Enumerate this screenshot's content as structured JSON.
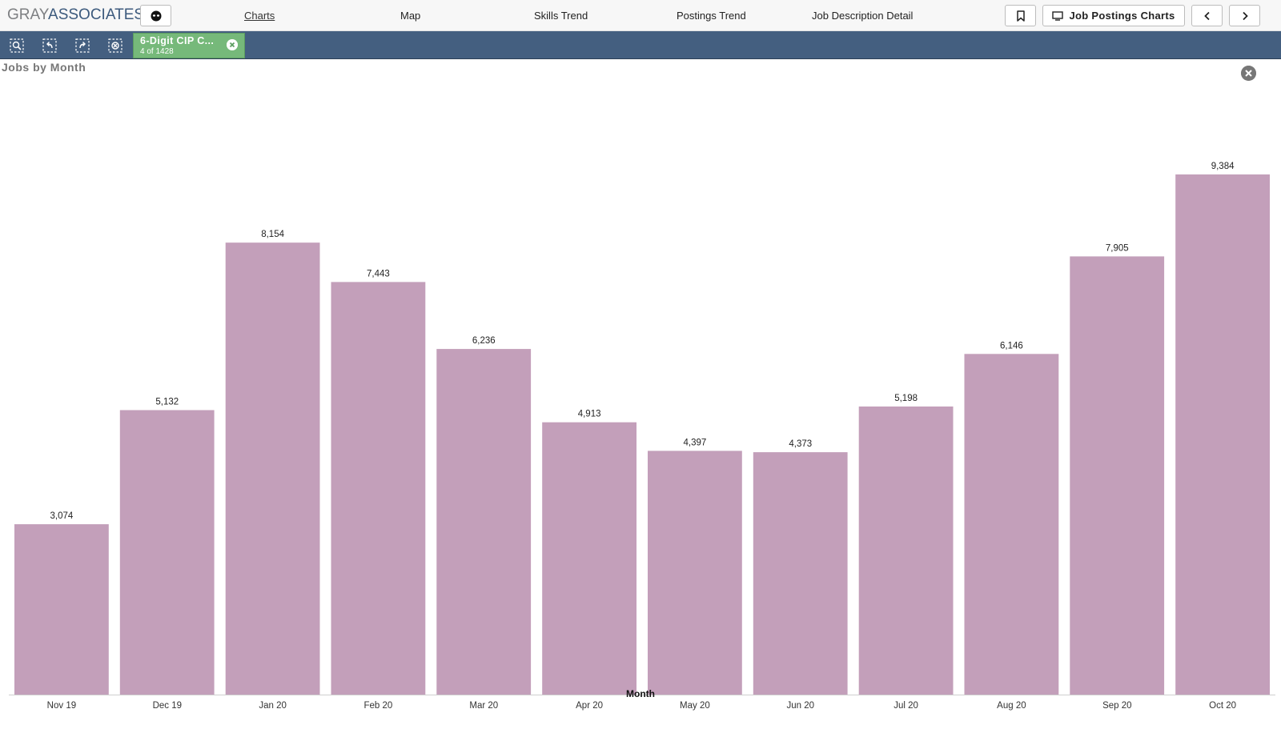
{
  "header": {
    "logo_gray": "GRAY",
    "logo_assoc": "ASSOCIATES",
    "nav": [
      "Charts",
      "Map",
      "Skills Trend",
      "Postings Trend",
      "Job Description Detail"
    ],
    "active_tab": "Charts",
    "sheet_button_label": "Job Postings Charts"
  },
  "selections": {
    "chip_label": "6-Digit CIP C...",
    "chip_count": "4 of 1428"
  },
  "panel": {
    "title": "Jobs by Month"
  },
  "colors": {
    "bar": "#c39fba",
    "header_bar": "#445f80",
    "chip": "#76b97a"
  },
  "chart_data": {
    "type": "bar",
    "title": "Jobs by Month",
    "xlabel": "Month",
    "ylabel": "",
    "categories": [
      "Nov 19",
      "Dec 19",
      "Jan 20",
      "Feb 20",
      "Mar 20",
      "Apr 20",
      "May 20",
      "Jun 20",
      "Jul 20",
      "Aug 20",
      "Sep 20",
      "Oct 20"
    ],
    "values": [
      3074,
      5132,
      8154,
      7443,
      6236,
      4913,
      4397,
      4373,
      5198,
      6146,
      7905,
      9384
    ],
    "value_labels": [
      "3,074",
      "5,132",
      "8,154",
      "7,443",
      "6,236",
      "4,913",
      "4,397",
      "4,373",
      "5,198",
      "6,146",
      "7,905",
      "9,384"
    ],
    "ylim": [
      0,
      9384
    ],
    "grid": false,
    "legend": "none"
  }
}
